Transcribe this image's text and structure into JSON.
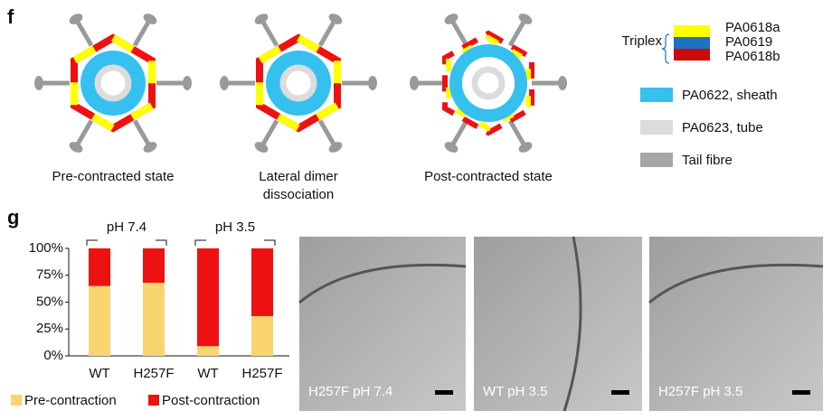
{
  "panel_f": {
    "label": "f",
    "diagrams": [
      "Pre-contracted state",
      "Lateral dimer dissociation",
      "Post-contracted state"
    ],
    "legend": {
      "group": "Triplex",
      "triplex": [
        {
          "name": "PA0618a",
          "color": "#ffff00"
        },
        {
          "name": "PA0619",
          "color": "#1d72c2"
        },
        {
          "name": "PA0618b",
          "color": "#cc0a0a"
        }
      ],
      "items": [
        {
          "name": "PA0622, sheath",
          "color": "#35c0f0"
        },
        {
          "name": "PA0623, tube",
          "color": "#dcdcdc"
        },
        {
          "name": "Tail fibre",
          "color": "#a6a6a6"
        }
      ]
    }
  },
  "panel_g": {
    "label": "g",
    "chart_data": {
      "type": "stacked_bar",
      "categories": [
        "WT",
        "H257F",
        "WT",
        "H257F"
      ],
      "groups": [
        "pH 7.4",
        "pH 3.5"
      ],
      "series": [
        {
          "name": "Pre-contraction",
          "color": "#fad46e",
          "values": [
            65,
            68,
            9,
            37
          ]
        },
        {
          "name": "Post-contraction",
          "color": "#ee1111",
          "values": [
            35,
            32,
            91,
            63
          ]
        }
      ],
      "ylim": [
        0,
        100
      ],
      "yticks": [
        {
          "value": 0,
          "label": "0%"
        },
        {
          "value": 25,
          "label": "25%"
        },
        {
          "value": 50,
          "label": "50%"
        },
        {
          "value": 75,
          "label": "75%"
        },
        {
          "value": 100,
          "label": "100%"
        }
      ]
    },
    "micrographs": [
      "H257F pH 7.4",
      "WT pH 3.5",
      "H257F pH 3.5"
    ]
  }
}
